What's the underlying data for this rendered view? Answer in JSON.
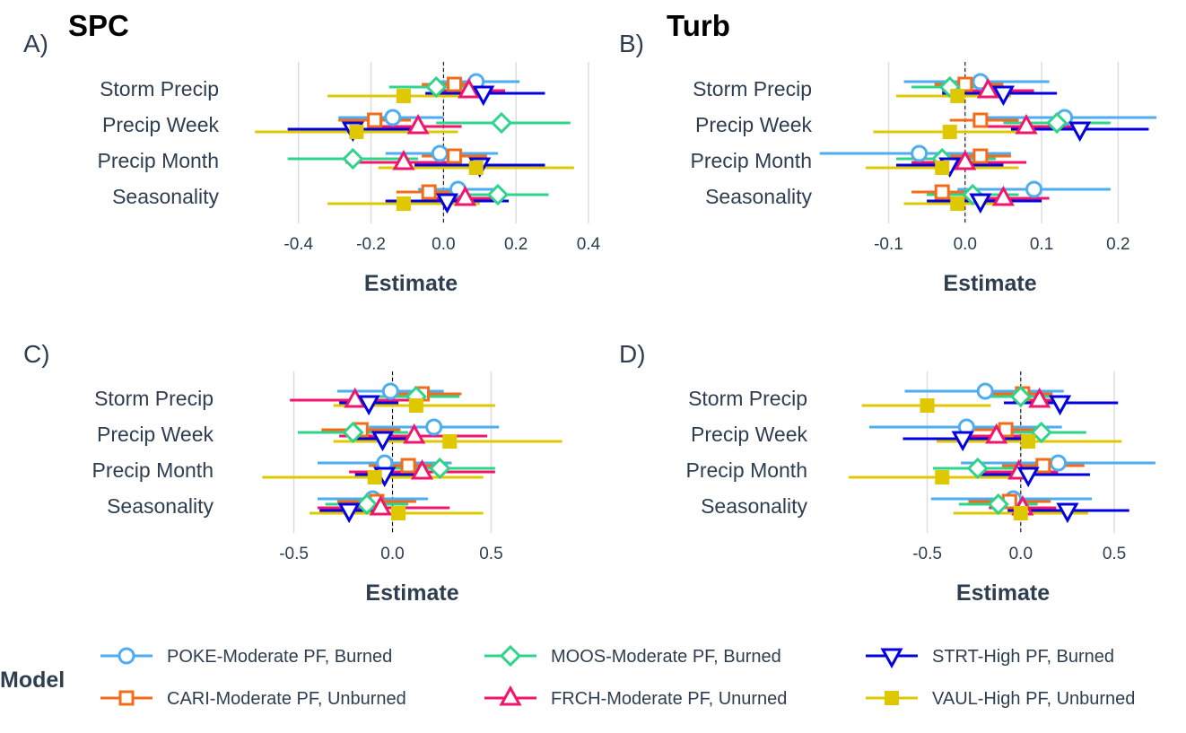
{
  "chart_data": [
    {
      "type": "scatter",
      "panel_label": "A)",
      "title": "SPC",
      "xlabel": "Estimate",
      "xlim": [
        -0.59,
        0.41
      ],
      "xticks": [
        -0.4,
        -0.2,
        0.0,
        0.2,
        0.4
      ],
      "tick_labels": [
        "-0.4",
        "-0.2",
        "0.0",
        "0.2",
        "0.4"
      ],
      "categories": [
        "Storm Precip",
        "Precip Week",
        "Precip Month",
        "Seasonality"
      ],
      "grid": true,
      "series": [
        {
          "name": "POKE-Moderate PF, Burned",
          "estimates": [
            0.09,
            -0.14,
            -0.01,
            0.04
          ],
          "lower": [
            -0.02,
            -0.29,
            -0.16,
            -0.07
          ],
          "upper": [
            0.21,
            0.0,
            0.15,
            0.15
          ]
        },
        {
          "name": "CARI-Moderate PF, Unburned",
          "estimates": [
            0.03,
            -0.19,
            0.03,
            -0.04
          ],
          "lower": [
            -0.06,
            -0.29,
            -0.06,
            -0.13
          ],
          "upper": [
            0.11,
            -0.09,
            0.12,
            0.05
          ]
        },
        {
          "name": "MOOS-Moderate PF, Burned",
          "estimates": [
            -0.02,
            0.16,
            -0.25,
            0.15
          ],
          "lower": [
            -0.15,
            -0.02,
            -0.43,
            0.01
          ],
          "upper": [
            0.11,
            0.35,
            -0.07,
            0.29
          ]
        },
        {
          "name": "FRCH-Moderate PF, Unurned",
          "estimates": [
            0.07,
            -0.07,
            -0.11,
            0.06
          ],
          "lower": [
            -0.03,
            -0.18,
            -0.27,
            -0.04
          ],
          "upper": [
            0.17,
            0.05,
            0.05,
            0.16
          ]
        },
        {
          "name": "STRT-High PF, Burned",
          "estimates": [
            0.11,
            -0.25,
            0.1,
            0.01
          ],
          "lower": [
            -0.05,
            -0.43,
            -0.08,
            -0.16
          ],
          "upper": [
            0.28,
            -0.07,
            0.28,
            0.18
          ]
        },
        {
          "name": "VAUL-High PF, Unburned",
          "estimates": [
            -0.11,
            -0.24,
            0.09,
            -0.11
          ],
          "lower": [
            -0.32,
            -0.52,
            -0.18,
            -0.32
          ],
          "upper": [
            0.1,
            0.04,
            0.36,
            0.1
          ]
        }
      ]
    },
    {
      "type": "scatter",
      "panel_label": "B)",
      "title": "Turb",
      "xlabel": "Estimate",
      "xlim": [
        -0.185,
        0.25
      ],
      "xticks": [
        -0.1,
        0.0,
        0.1,
        0.2
      ],
      "tick_labels": [
        "-0.1",
        "0.0",
        "0.1",
        "0.2"
      ],
      "categories": [
        "Storm Precip",
        "Precip Week",
        "Precip Month",
        "Seasonality"
      ],
      "grid": true,
      "series": [
        {
          "name": "POKE-Moderate PF, Burned",
          "estimates": [
            0.02,
            0.13,
            -0.06,
            0.09
          ],
          "lower": [
            -0.08,
            0.02,
            -0.19,
            -0.01
          ],
          "upper": [
            0.11,
            0.25,
            0.06,
            0.19
          ]
        },
        {
          "name": "CARI-Moderate PF, Unburned",
          "estimates": [
            0.0,
            0.02,
            0.02,
            -0.03
          ],
          "lower": [
            -0.04,
            -0.02,
            -0.02,
            -0.07
          ],
          "upper": [
            0.05,
            0.07,
            0.06,
            0.01
          ]
        },
        {
          "name": "MOOS-Moderate PF, Burned",
          "estimates": [
            -0.02,
            0.12,
            -0.03,
            0.01
          ],
          "lower": [
            -0.07,
            0.05,
            -0.09,
            -0.05
          ],
          "upper": [
            0.03,
            0.19,
            0.04,
            0.07
          ]
        },
        {
          "name": "FRCH-Moderate PF, Unurned",
          "estimates": [
            0.03,
            0.08,
            0.0,
            0.05
          ],
          "lower": [
            -0.03,
            0.02,
            -0.07,
            -0.02
          ],
          "upper": [
            0.09,
            0.14,
            0.08,
            0.11
          ]
        },
        {
          "name": "STRT-High PF, Burned",
          "estimates": [
            0.05,
            0.15,
            -0.02,
            0.02
          ],
          "lower": [
            -0.03,
            0.06,
            -0.09,
            -0.05
          ],
          "upper": [
            0.12,
            0.24,
            0.05,
            0.1
          ]
        },
        {
          "name": "VAUL-High PF, Unburned",
          "estimates": [
            -0.01,
            -0.02,
            -0.03,
            -0.01
          ],
          "lower": [
            -0.09,
            -0.12,
            -0.13,
            -0.08
          ],
          "upper": [
            0.06,
            0.08,
            0.07,
            0.06
          ]
        }
      ]
    },
    {
      "type": "scatter",
      "panel_label": "C)",
      "title": "",
      "xlabel": "Estimate",
      "xlim": [
        -0.68,
        0.88
      ],
      "xticks": [
        -0.5,
        0.0,
        0.5
      ],
      "tick_labels": [
        "-0.5",
        "0.0",
        "0.5"
      ],
      "categories": [
        "Storm Precip",
        "Precip Week",
        "Precip Month",
        "Seasonality"
      ],
      "grid": true,
      "series": [
        {
          "name": "POKE-Moderate PF, Burned",
          "estimates": [
            -0.01,
            0.21,
            -0.04,
            -0.1
          ],
          "lower": [
            -0.28,
            -0.12,
            -0.38,
            -0.38
          ],
          "upper": [
            0.26,
            0.54,
            0.3,
            0.18
          ]
        },
        {
          "name": "CARI-Moderate PF, Unburned",
          "estimates": [
            0.15,
            -0.16,
            0.08,
            -0.08
          ],
          "lower": [
            -0.05,
            -0.36,
            -0.12,
            -0.28
          ],
          "upper": [
            0.35,
            0.04,
            0.28,
            0.12
          ]
        },
        {
          "name": "MOOS-Moderate PF, Burned",
          "estimates": [
            0.12,
            -0.2,
            0.24,
            -0.13
          ],
          "lower": [
            -0.1,
            -0.48,
            -0.04,
            -0.34
          ],
          "upper": [
            0.34,
            0.08,
            0.52,
            0.08
          ]
        },
        {
          "name": "FRCH-Moderate PF, Unurned",
          "estimates": [
            -0.19,
            0.11,
            0.15,
            -0.06
          ],
          "lower": [
            -0.52,
            -0.27,
            -0.22,
            -0.38
          ],
          "upper": [
            0.13,
            0.48,
            0.52,
            0.29
          ]
        },
        {
          "name": "STRT-High PF, Burned",
          "estimates": [
            -0.12,
            -0.05,
            -0.04,
            -0.22
          ],
          "lower": [
            -0.27,
            -0.2,
            -0.19,
            -0.37
          ],
          "upper": [
            0.03,
            0.1,
            0.11,
            -0.07
          ]
        },
        {
          "name": "VAUL-High PF, Unburned",
          "estimates": [
            0.12,
            0.29,
            -0.09,
            0.03
          ],
          "lower": [
            -0.3,
            -0.3,
            -0.66,
            -0.42
          ],
          "upper": [
            0.52,
            0.86,
            0.46,
            0.46
          ]
        }
      ]
    },
    {
      "type": "scatter",
      "panel_label": "D)",
      "title": "",
      "xlabel": "Estimate",
      "xlim": [
        -0.92,
        0.73
      ],
      "xticks": [
        -0.5,
        0.0,
        0.5
      ],
      "tick_labels": [
        "-0.5",
        "0.0",
        "0.5"
      ],
      "categories": [
        "Storm Precip",
        "Precip Week",
        "Precip Month",
        "Seasonality"
      ],
      "grid": true,
      "series": [
        {
          "name": "POKE-Moderate PF, Burned",
          "estimates": [
            -0.19,
            -0.29,
            0.2,
            -0.04
          ],
          "lower": [
            -0.62,
            -0.81,
            -0.32,
            -0.48
          ],
          "upper": [
            0.23,
            0.22,
            0.72,
            0.38
          ]
        },
        {
          "name": "CARI-Moderate PF, Unburned",
          "estimates": [
            0.01,
            -0.08,
            0.12,
            -0.06
          ],
          "lower": [
            -0.15,
            -0.32,
            -0.1,
            -0.28
          ],
          "upper": [
            0.17,
            0.15,
            0.34,
            0.16
          ]
        },
        {
          "name": "MOOS-Moderate PF, Burned",
          "estimates": [
            0.0,
            0.11,
            -0.23,
            -0.12
          ],
          "lower": [
            -0.18,
            -0.13,
            -0.47,
            -0.33
          ],
          "upper": [
            0.17,
            0.35,
            0.01,
            0.09
          ]
        },
        {
          "name": "FRCH-Moderate PF, Unurned",
          "estimates": [
            0.1,
            -0.13,
            -0.01,
            0.01
          ],
          "lower": [
            -0.04,
            -0.35,
            -0.23,
            -0.17
          ],
          "upper": [
            0.24,
            0.08,
            0.2,
            0.19
          ]
        },
        {
          "name": "STRT-High PF, Burned",
          "estimates": [
            0.21,
            -0.31,
            0.04,
            0.25
          ],
          "lower": [
            -0.09,
            -0.63,
            -0.24,
            -0.07
          ],
          "upper": [
            0.52,
            0.01,
            0.37,
            0.58
          ]
        },
        {
          "name": "VAUL-High PF, Unburned",
          "estimates": [
            -0.5,
            0.04,
            -0.42,
            0.0
          ],
          "lower": [
            -0.85,
            -0.45,
            -0.92,
            -0.36
          ],
          "upper": [
            -0.16,
            0.54,
            0.06,
            0.36
          ]
        }
      ]
    }
  ],
  "legend": {
    "title": "Model",
    "placement": "bottom",
    "items": [
      {
        "label": "POKE-Moderate PF, Burned",
        "color": "#4DADEF",
        "shape": "circle"
      },
      {
        "label": "CARI-Moderate PF, Unburned",
        "color": "#F46B19",
        "shape": "square"
      },
      {
        "label": "MOOS-Moderate PF, Burned",
        "color": "#2ED48A",
        "shape": "diamond"
      },
      {
        "label": "FRCH-Moderate PF, Unurned",
        "color": "#F1166B",
        "shape": "triangle-up"
      },
      {
        "label": "STRT-High PF, Burned",
        "color": "#0000E0",
        "shape": "triangle-down"
      },
      {
        "label": "VAUL-High PF, Unburned",
        "color": "#E0C800",
        "shape": "square-filled"
      }
    ]
  },
  "colors": {
    "text": "#2E3E50",
    "grid": "#DDDDDD",
    "zero_line": "#000000"
  }
}
